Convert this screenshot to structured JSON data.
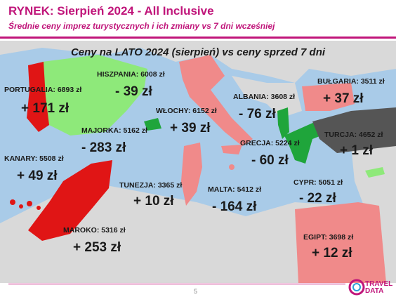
{
  "header": {
    "title": "RYNEK: Sierpień 2024 - All Inclusive",
    "subtitle": "Średnie ceny imprez turystycznych i ich zmiany vs 7 dni wcześniej"
  },
  "banner": "Ceny na LATO 2024 (sierpień) vs ceny sprzed 7 dni",
  "colors": {
    "price_up_strong": "#e01515",
    "price_up_light": "#f08a8a",
    "price_down_strong": "#1fa53b",
    "price_down_light": "#8ee97a",
    "neutral": "#555555",
    "land": "#d9d9d9",
    "sea": "#a9cbe8",
    "brand": "#c0157a"
  },
  "destinations": {
    "portugalia": {
      "label": "PORTUGALIA: 6893 zł",
      "change": "+ 171 zł"
    },
    "hiszpania": {
      "label": "HISZPANIA: 6008 zł",
      "change": "- 39 zł"
    },
    "majorka": {
      "label": "MAJORKA: 5162 zł",
      "change": "- 283 zł"
    },
    "kanary": {
      "label": "KANARY: 5508 zł",
      "change": "+ 49 zł"
    },
    "maroko": {
      "label": "MAROKO: 5316 zł",
      "change": "+ 253 zł"
    },
    "wlochy": {
      "label": "WŁOCHY: 6152 zł",
      "change": "+ 39 zł"
    },
    "tunezja": {
      "label": "TUNEZJA: 3365 zł",
      "change": "+ 10 zł"
    },
    "malta": {
      "label": "MALTA: 5412 zł",
      "change": "- 164 zł"
    },
    "albania": {
      "label": "ALBANIA: 3608 zł",
      "change": "- 76 zł"
    },
    "grecja": {
      "label": "GRECJA: 5224 zł",
      "change": "- 60 zł"
    },
    "bulgaria": {
      "label": "BUŁGARIA: 3511 zł",
      "change": "+ 37 zł"
    },
    "turcja": {
      "label": "TURCJA: 4652 zł",
      "change": "+ 1 zł"
    },
    "cypr": {
      "label": "CYPR: 5051 zł",
      "change": "- 22 zł"
    },
    "egipt": {
      "label": "EGIPT: 3698 zł",
      "change": "+ 12 zł"
    }
  },
  "footer": {
    "page_number": "5",
    "logo_text_1": "TRAVEL",
    "logo_text_2": "DATA"
  }
}
